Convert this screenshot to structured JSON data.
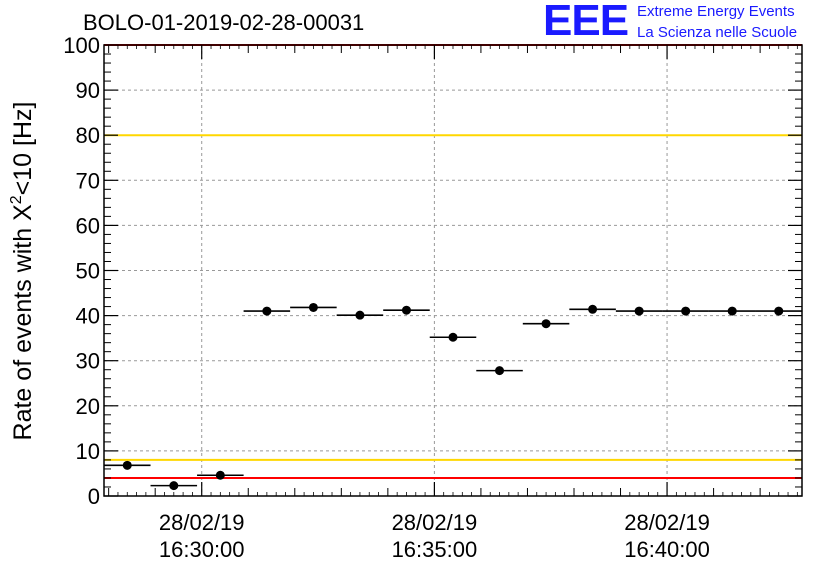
{
  "chart_data": {
    "type": "scatter",
    "title": "BOLO-01-2019-02-28-00031",
    "xlabel": "",
    "ylabel_main": "Rate of events with X",
    "ylabel_sup": "2",
    "ylabel_tail": "<10 [Hz]",
    "ylim": [
      0,
      100
    ],
    "y_ticks": [
      "0",
      "10",
      "20",
      "30",
      "40",
      "50",
      "60",
      "70",
      "80",
      "90",
      "100"
    ],
    "x_tick_labels": [
      {
        "date": "28/02/19",
        "time": "16:30:00"
      },
      {
        "date": "28/02/19",
        "time": "16:35:00"
      },
      {
        "date": "28/02/19",
        "time": "16:40:00"
      }
    ],
    "x_tick_minutes": [
      0,
      5,
      10
    ],
    "xlim_minutes": [
      -2.1,
      12.9
    ],
    "grid": true,
    "reference_lines": [
      {
        "y": 100,
        "color": "#ff0000"
      },
      {
        "y": 80,
        "color": "#ffd700"
      },
      {
        "y": 8,
        "color": "#ffd700"
      },
      {
        "y": 4,
        "color": "#ff0000"
      }
    ],
    "points": [
      {
        "t_min": -1.6,
        "y": 6.8,
        "dx_min": 0.5
      },
      {
        "t_min": -0.6,
        "y": 2.3,
        "dx_min": 0.5
      },
      {
        "t_min": 0.4,
        "y": 4.6,
        "dx_min": 0.5
      },
      {
        "t_min": 1.4,
        "y": 41.0,
        "dx_min": 0.5
      },
      {
        "t_min": 2.4,
        "y": 41.8,
        "dx_min": 0.5
      },
      {
        "t_min": 3.4,
        "y": 40.1,
        "dx_min": 0.5
      },
      {
        "t_min": 4.4,
        "y": 41.2,
        "dx_min": 0.5
      },
      {
        "t_min": 5.4,
        "y": 35.2,
        "dx_min": 0.5
      },
      {
        "t_min": 6.4,
        "y": 27.8,
        "dx_min": 0.5
      },
      {
        "t_min": 7.4,
        "y": 38.2,
        "dx_min": 0.5
      },
      {
        "t_min": 8.4,
        "y": 41.4,
        "dx_min": 0.5
      },
      {
        "t_min": 9.4,
        "y": 41.0,
        "dx_min": 0.5
      },
      {
        "t_min": 10.4,
        "y": 41.0,
        "dx_min": 0.5
      },
      {
        "t_min": 11.4,
        "y": 41.0,
        "dx_min": 0.5
      },
      {
        "t_min": 12.4,
        "y": 41.0,
        "dx_min": 0.5
      }
    ]
  },
  "logo": {
    "mark": "EEE",
    "line1": "Extreme Energy Events",
    "line2": "La Scienza nelle Scuole",
    "color": "#1a1aff"
  }
}
